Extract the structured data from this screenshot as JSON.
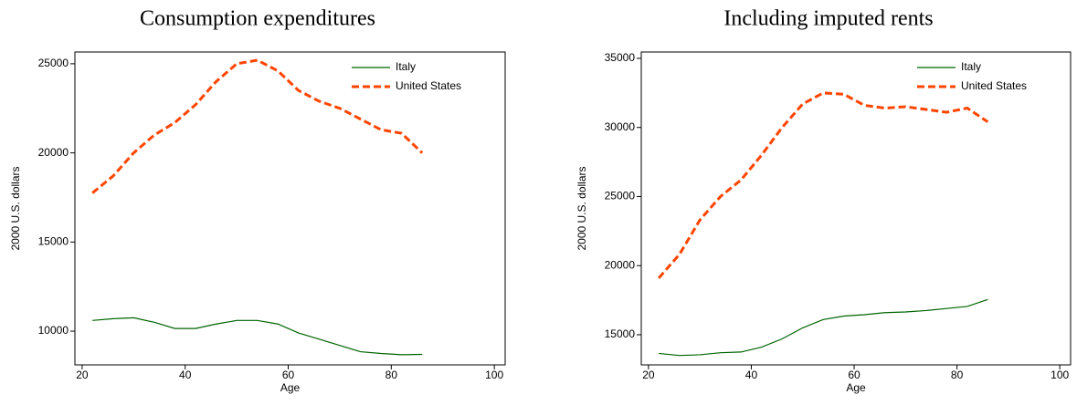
{
  "chart_data": [
    {
      "type": "line",
      "title": "Consumption expenditures",
      "x_label": "Age",
      "y_label": "2000 U.S. dollars",
      "x": [
        22,
        26,
        30,
        34,
        38,
        42,
        46,
        50,
        54,
        58,
        62,
        66,
        70,
        74,
        78,
        82,
        86
      ],
      "series": [
        {
          "name": "Italy",
          "color": "#006400",
          "dashed": false,
          "values": [
            10600,
            10700,
            10750,
            10500,
            10150,
            10150,
            10400,
            10600,
            10600,
            10400,
            9900,
            9550,
            9200,
            8850,
            8750,
            8680,
            8700
          ]
        },
        {
          "name": "United States",
          "color": "#ff4500",
          "dashed": true,
          "values": [
            17750,
            18700,
            20000,
            21000,
            21700,
            22700,
            24000,
            25000,
            25200,
            24600,
            23500,
            22900,
            22500,
            21900,
            21300,
            21100,
            20000
          ]
        }
      ],
      "xlim": [
        18.6,
        102.1
      ],
      "xticks": [
        20,
        40,
        60,
        80,
        100
      ],
      "ylim": [
        8110,
        25660
      ],
      "yticks": [
        10000,
        15000,
        20000,
        25000
      ],
      "legend": "top-right"
    },
    {
      "type": "line",
      "title": "Including imputed rents",
      "x_label": "Age",
      "y_label": "2000 U.S. dollars",
      "x": [
        22,
        26,
        30,
        34,
        38,
        42,
        46,
        50,
        54,
        58,
        62,
        66,
        70,
        74,
        78,
        82,
        86
      ],
      "series": [
        {
          "name": "Italy",
          "color": "#006400",
          "dashed": false,
          "values": [
            13650,
            13500,
            13550,
            13700,
            13750,
            14100,
            14700,
            15500,
            16100,
            16350,
            16450,
            16600,
            16650,
            16750,
            16900,
            17050,
            17550
          ]
        },
        {
          "name": "United States",
          "color": "#ff4500",
          "dashed": true,
          "values": [
            19100,
            20800,
            23300,
            25000,
            26200,
            28000,
            30000,
            31700,
            32500,
            32400,
            31600,
            31400,
            31500,
            31300,
            31100,
            31400,
            30400
          ]
        }
      ],
      "xlim": [
        18.6,
        102.1
      ],
      "xticks": [
        20,
        40,
        60,
        80,
        100
      ],
      "ylim": [
        12820,
        35460
      ],
      "yticks": [
        15000,
        20000,
        25000,
        30000,
        35000
      ],
      "legend": "top-right"
    }
  ]
}
